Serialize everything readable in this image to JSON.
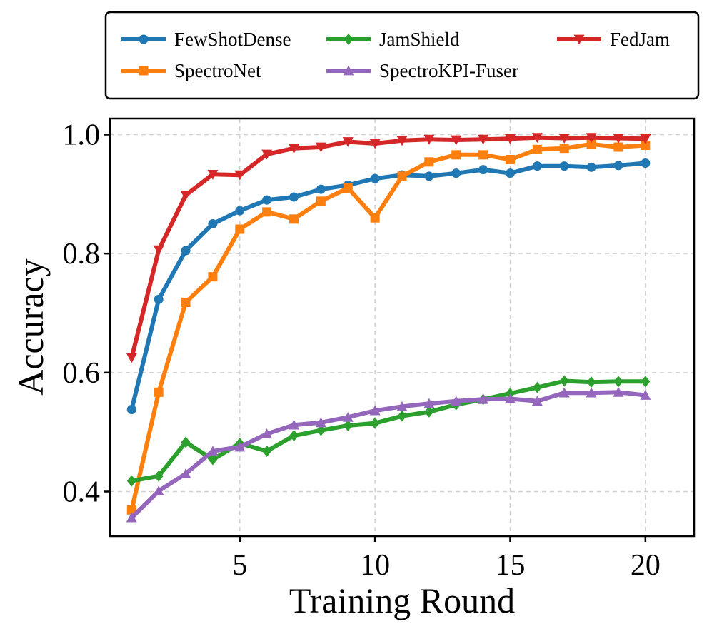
{
  "chart_data": {
    "type": "line",
    "title": "",
    "xlabel": "Training Round",
    "ylabel": "Accuracy",
    "xlim": [
      0.2,
      21.8
    ],
    "ylim": [
      0.325,
      1.027
    ],
    "xticks": [
      5,
      10,
      15,
      20
    ],
    "yticks": [
      0.4,
      0.6,
      0.8,
      1.0
    ],
    "ytick_labels": [
      "0.4",
      "0.6",
      "0.8",
      "1.0"
    ],
    "grid": true,
    "legend_position": "top (above plot)",
    "x": [
      1,
      2,
      3,
      4,
      5,
      6,
      7,
      8,
      9,
      10,
      11,
      12,
      13,
      14,
      15,
      16,
      17,
      18,
      19,
      20
    ],
    "series": [
      {
        "name": "FewShotDense",
        "color": "#1f77b4",
        "marker": "circle",
        "values": [
          0.538,
          0.723,
          0.805,
          0.85,
          0.872,
          0.89,
          0.895,
          0.908,
          0.915,
          0.926,
          0.932,
          0.93,
          0.935,
          0.941,
          0.935,
          0.947,
          0.947,
          0.945,
          0.948,
          0.952
        ]
      },
      {
        "name": "SpectroNet",
        "color": "#ff7f0e",
        "marker": "square",
        "values": [
          0.369,
          0.567,
          0.718,
          0.761,
          0.841,
          0.87,
          0.858,
          0.888,
          0.91,
          0.86,
          0.93,
          0.954,
          0.966,
          0.966,
          0.958,
          0.975,
          0.977,
          0.984,
          0.979,
          0.982
        ]
      },
      {
        "name": "JamShield",
        "color": "#2ca02c",
        "marker": "diamond",
        "values": [
          0.418,
          0.426,
          0.483,
          0.454,
          0.481,
          0.468,
          0.494,
          0.503,
          0.511,
          0.515,
          0.527,
          0.534,
          0.546,
          0.555,
          0.565,
          0.575,
          0.586,
          0.584,
          0.585,
          0.585
        ]
      },
      {
        "name": "SpectroKPI-Fuser",
        "color": "#9467bd",
        "marker": "triangle-up",
        "values": [
          0.356,
          0.401,
          0.43,
          0.468,
          0.475,
          0.497,
          0.512,
          0.516,
          0.525,
          0.536,
          0.543,
          0.548,
          0.552,
          0.555,
          0.556,
          0.552,
          0.566,
          0.566,
          0.567,
          0.562
        ]
      },
      {
        "name": "FedJam",
        "color": "#d62728",
        "marker": "triangle-down",
        "values": [
          0.625,
          0.806,
          0.898,
          0.933,
          0.932,
          0.967,
          0.977,
          0.979,
          0.988,
          0.985,
          0.99,
          0.992,
          0.991,
          0.992,
          0.993,
          0.995,
          0.994,
          0.995,
          0.994,
          0.993
        ]
      }
    ]
  }
}
